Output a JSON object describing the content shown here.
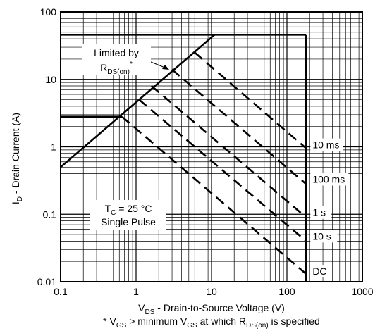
{
  "chart_data": {
    "type": "line",
    "xscale": "log",
    "yscale": "log",
    "xlim": [
      0.1,
      1000
    ],
    "ylim": [
      0.01,
      100
    ],
    "grid": true,
    "x_tick_labels": [
      "0.1",
      "1",
      "10",
      "100",
      "1000"
    ],
    "y_tick_labels": [
      "0.01",
      "0.1",
      "1",
      "10",
      "100"
    ],
    "xlabel": {
      "main": "V",
      "sub": "DS",
      "rest": " - Drain-to-Source Voltage (V)"
    },
    "ylabel": {
      "main": "I",
      "sub": "D",
      "rest": " - Drain Current (A)"
    },
    "footnote": {
      "p1": "* V",
      "s1": "GS",
      "p2": " > minimum V",
      "s2": "GS",
      "p3": " at which R",
      "s3": "DS(on)",
      "p4": " is specified"
    },
    "annotations": {
      "limited_line1": "Limited by",
      "limited_main": "R",
      "limited_sub": "DS(on)",
      "limited_sup": "*",
      "tc_main": "T",
      "tc_sub": "C",
      "tc_rest": " = 25 °C",
      "pulse": "Single Pulse"
    },
    "boundary": {
      "name": "SOA boundary",
      "points": [
        [
          0.1,
          2.8
        ],
        [
          0.65,
          2.8
        ],
        [
          0.1,
          0.5
        ],
        [
          11,
          46
        ],
        [
          0.1,
          46
        ],
        [
          180,
          46
        ],
        [
          180,
          0.01
        ]
      ]
    },
    "series": [
      {
        "name": "10 ms",
        "style": "dashed",
        "points": [
          [
            6,
            25
          ],
          [
            180,
            0.95
          ]
        ]
      },
      {
        "name": "100 ms",
        "style": "dashed",
        "points": [
          [
            3,
            14
          ],
          [
            180,
            0.28
          ]
        ]
      },
      {
        "name": "1 s",
        "style": "dashed",
        "points": [
          [
            1.6,
            8
          ],
          [
            180,
            0.09
          ]
        ]
      },
      {
        "name": "10 s",
        "style": "dashed",
        "points": [
          [
            1.1,
            5
          ],
          [
            180,
            0.04
          ]
        ]
      },
      {
        "name": "DC",
        "style": "dashed",
        "points": [
          [
            0.65,
            2.8
          ],
          [
            180,
            0.013
          ]
        ]
      }
    ]
  }
}
